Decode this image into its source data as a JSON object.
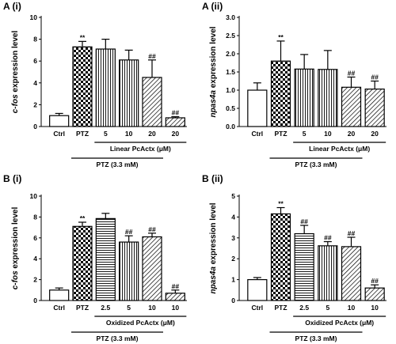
{
  "chart_data": [
    {
      "panel": "A (i)",
      "type": "bar",
      "ylabel_italic": "c-fos",
      "ylabel_rest": " expression level",
      "ylim": [
        0,
        10
      ],
      "yticks": [
        0,
        2,
        4,
        6,
        8,
        10
      ],
      "categories": [
        "Ctrl",
        "PTZ",
        "5",
        "10",
        "20",
        "20"
      ],
      "values": [
        1.0,
        7.3,
        7.1,
        6.1,
        4.5,
        0.8
      ],
      "errors": [
        0.2,
        0.5,
        0.9,
        0.9,
        1.6,
        0.1
      ],
      "patterns": [
        "white",
        "checker",
        "vertical",
        "vertical",
        "diagonal",
        "diagonal"
      ],
      "annotations": [
        "",
        "**",
        "",
        "",
        "##",
        "##"
      ],
      "brackets": [
        {
          "label": "Linear PcActx (μM)",
          "from": 2,
          "to": 5
        },
        {
          "label": "PTZ (3.3 mM)",
          "from": 1,
          "to": 4
        }
      ]
    },
    {
      "panel": "A (ii)",
      "type": "bar",
      "ylabel_italic": "npas4a",
      "ylabel_rest": " expression level",
      "ylim": [
        0,
        3.0
      ],
      "yticks": [
        "0.0",
        "0.5",
        "1.0",
        "1.5",
        "2.0",
        "2.5",
        "3.0"
      ],
      "categories": [
        "Ctrl",
        "PTZ",
        "5",
        "10",
        "20",
        "20"
      ],
      "values": [
        1.0,
        1.8,
        1.58,
        1.57,
        1.08,
        1.03
      ],
      "errors": [
        0.2,
        0.55,
        0.4,
        0.52,
        0.28,
        0.22
      ],
      "patterns": [
        "white",
        "checker",
        "vertical",
        "vertical",
        "diagonal",
        "diagonal"
      ],
      "annotations": [
        "",
        "**",
        "",
        "",
        "##",
        "##"
      ],
      "brackets": [
        {
          "label": "Linear PcActx (μM)",
          "from": 2,
          "to": 5
        },
        {
          "label": "PTZ (3.3 mM)",
          "from": 1,
          "to": 4
        }
      ]
    },
    {
      "panel": "B (i)",
      "type": "bar",
      "ylabel_italic": "c-fos",
      "ylabel_rest": " expression level",
      "ylim": [
        0,
        10
      ],
      "yticks": [
        0,
        2,
        4,
        6,
        8,
        10
      ],
      "categories": [
        "Ctrl",
        "PTZ",
        "2.5",
        "5",
        "10",
        "10"
      ],
      "values": [
        1.0,
        7.1,
        7.85,
        5.6,
        6.1,
        0.7
      ],
      "errors": [
        0.2,
        0.4,
        0.5,
        0.6,
        0.35,
        0.3
      ],
      "patterns": [
        "white",
        "checker",
        "horizontal",
        "vertical",
        "diagonal",
        "diagonal"
      ],
      "annotations": [
        "",
        "**",
        "",
        "##",
        "##",
        "##"
      ],
      "brackets": [
        {
          "label": "Oxidized PcActx (μM)",
          "from": 2,
          "to": 5
        },
        {
          "label": "PTZ (3.3 mM)",
          "from": 1,
          "to": 4
        }
      ]
    },
    {
      "panel": "B (ii)",
      "type": "bar",
      "ylabel_italic": "npas4a",
      "ylabel_rest": " expression level",
      "ylim": [
        0,
        5
      ],
      "yticks": [
        0,
        1,
        2,
        3,
        4,
        5
      ],
      "categories": [
        "Ctrl",
        "PTZ",
        "2.5",
        "5",
        "10",
        "10"
      ],
      "values": [
        1.0,
        4.15,
        3.2,
        2.62,
        2.58,
        0.6
      ],
      "errors": [
        0.1,
        0.3,
        0.4,
        0.2,
        0.45,
        0.15
      ],
      "patterns": [
        "white",
        "checker",
        "horizontal",
        "vertical",
        "diagonal",
        "diagonal"
      ],
      "annotations": [
        "",
        "**",
        "##",
        "##",
        "##",
        "##"
      ],
      "brackets": [
        {
          "label": "Oxidized PcActx (μM)",
          "from": 2,
          "to": 5
        },
        {
          "label": "PTZ (3.3 mM)",
          "from": 1,
          "to": 4
        }
      ]
    }
  ]
}
